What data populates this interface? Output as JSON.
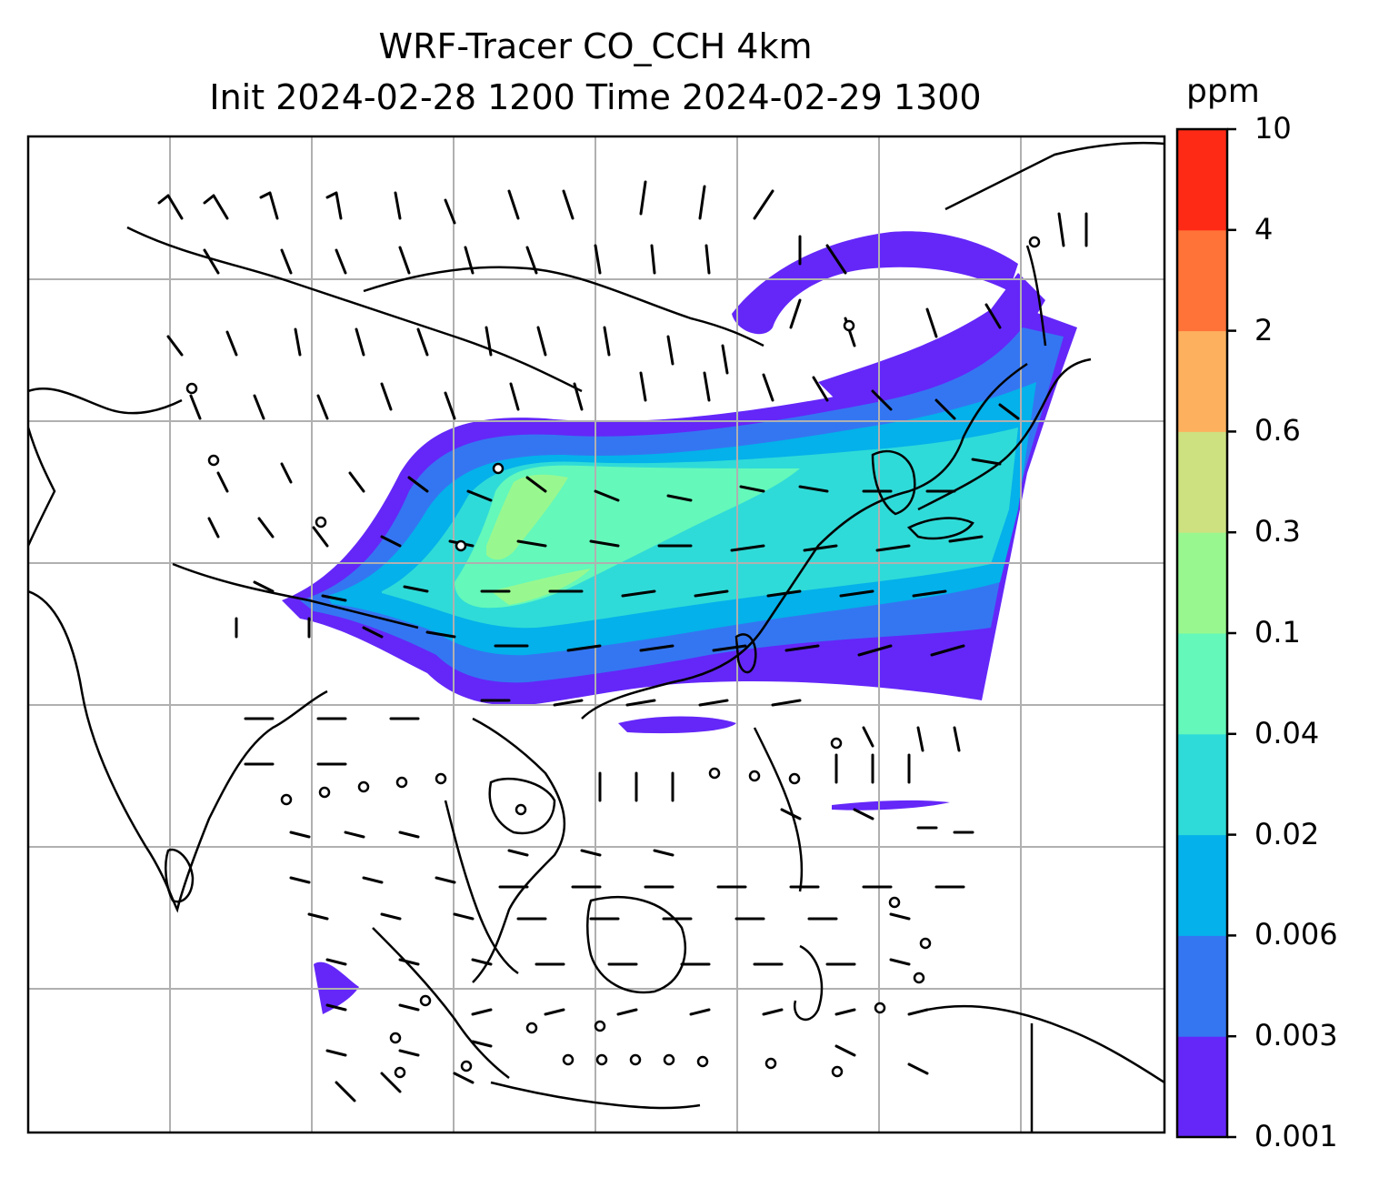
{
  "title": {
    "line1": "WRF-Tracer CO_CCH 4km",
    "line2": "Init 2024-02-28 1200 Time 2024-02-29 1300"
  },
  "colorbar": {
    "unit": "ppm",
    "levels": [
      "0.001",
      "0.003",
      "0.006",
      "0.02",
      "0.04",
      "0.1",
      "0.3",
      "0.6",
      "2",
      "4",
      "10"
    ],
    "colors": [
      "#6427f8",
      "#3476f2",
      "#04b1ea",
      "#2fdbd8",
      "#64f8ba",
      "#98f88f",
      "#cde181",
      "#fdb15f",
      "#ff7238",
      "#ff2a16"
    ]
  },
  "map": {
    "background": "#ffffff",
    "gridline_color": "#b0b0b0",
    "coastline_color": "#000000",
    "gridlines": true,
    "plume_direction": "west-to-east",
    "wind_barbs": true,
    "calm_circles": true
  }
}
